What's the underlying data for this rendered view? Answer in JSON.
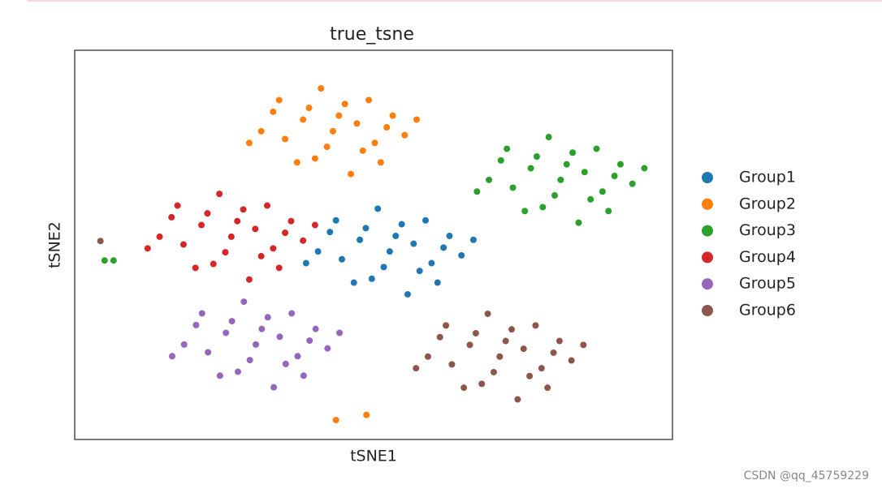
{
  "chart_data": {
    "type": "scatter",
    "title": "true_tsne",
    "x_label": "tSNE1",
    "y_label": "tSNE2",
    "xlim": [
      0,
      100
    ],
    "ylim": [
      0,
      100
    ],
    "xticks": [],
    "yticks": [],
    "grid": false,
    "legend": "right",
    "series": [
      {
        "name": "Group1",
        "color": "#1f77b4",
        "x": [
          52.7,
          56.7,
          47.7,
          59.7,
          44.7,
          54.7,
          49.7,
          62.7,
          42.7,
          58.7,
          46.7,
          64.7,
          40.7,
          55.7,
          50.7,
          60.7,
          43.7,
          66.7,
          38.7,
          53.7,
          51.7,
          57.7,
          48.7,
          61.7
        ],
        "y": [
          48.3,
          50.3,
          51.3,
          45.3,
          46.3,
          55.3,
          41.3,
          52.3,
          53.3,
          56.3,
          40.3,
          47.3,
          48.3,
          37.3,
          59.3,
          40.3,
          56.3,
          51.3,
          45.3,
          52.3,
          44.3,
          43.3,
          54.3,
          49.3
        ]
      },
      {
        "name": "Group2",
        "color": "#ff7f0e",
        "x": [
          43.2,
          47.2,
          38.2,
          50.2,
          35.2,
          45.2,
          40.2,
          53.2,
          33.2,
          49.2,
          37.2,
          55.2,
          31.2,
          46.2,
          41.2,
          51.2,
          34.2,
          57.2,
          29.2,
          44.2,
          42.2,
          48.2,
          39.2,
          52.2,
          43.7,
          48.8
        ],
        "y": [
          79.2,
          81.2,
          82.2,
          76.2,
          77.2,
          86.2,
          72.2,
          83.2,
          84.2,
          87.2,
          71.2,
          78.2,
          79.2,
          68.2,
          90.2,
          71.2,
          87.2,
          82.2,
          76.2,
          83.2,
          75.2,
          74.2,
          85.2,
          80.2,
          5,
          6.3
        ]
      },
      {
        "name": "Group3",
        "color": "#2ca02c",
        "x": [
          81.3,
          85.3,
          76.3,
          88.3,
          73.3,
          83.3,
          78.3,
          91.3,
          71.3,
          87.3,
          75.3,
          93.3,
          69.3,
          84.3,
          79.3,
          89.3,
          72.3,
          95.3,
          67.3,
          82.3,
          80.3,
          86.3,
          77.3,
          90.3,
          5,
          6.5
        ],
        "y": [
          66.7,
          68.7,
          69.7,
          63.7,
          64.7,
          73.7,
          59.7,
          70.7,
          71.7,
          74.7,
          58.7,
          65.7,
          66.7,
          55.7,
          77.7,
          58.7,
          74.7,
          69.7,
          63.7,
          70.7,
          62.7,
          61.7,
          72.7,
          67.7,
          46,
          46
        ]
      },
      {
        "name": "Group4",
        "color": "#d62728",
        "x": [
          26.2,
          30.2,
          21.2,
          33.2,
          18.2,
          28.2,
          23.2,
          36.2,
          16.2,
          32.2,
          20.2,
          38.2,
          14.2,
          29.2,
          24.2,
          34.2,
          17.2,
          40.2,
          12.2,
          27.2,
          25.2,
          31.2,
          22.2,
          35.2
        ],
        "y": [
          52.1,
          54.1,
          55.1,
          49.1,
          50.1,
          59.1,
          45.1,
          56.1,
          57.1,
          60.1,
          44.1,
          51.1,
          52.1,
          41.1,
          63.1,
          44.1,
          60.1,
          55.1,
          49.1,
          56.1,
          48.1,
          47.1,
          58.1,
          53.1
        ]
      },
      {
        "name": "Group5",
        "color": "#9467bd",
        "x": [
          30.3,
          34.3,
          25.3,
          37.3,
          22.3,
          32.3,
          27.3,
          40.3,
          20.3,
          36.3,
          24.3,
          42.3,
          18.3,
          33.3,
          28.3,
          38.3,
          21.3,
          44.3,
          16.3,
          31.3,
          29.3,
          35.3,
          26.3,
          39.3
        ],
        "y": [
          24.4,
          26.4,
          27.4,
          21.4,
          22.4,
          31.4,
          17.4,
          28.4,
          29.4,
          32.4,
          16.4,
          23.4,
          24.4,
          13.4,
          35.4,
          16.4,
          32.4,
          27.4,
          21.4,
          28.4,
          20.4,
          19.4,
          30.4,
          25.4
        ]
      },
      {
        "name": "Group6",
        "color": "#8c564b",
        "x": [
          71.1,
          75.1,
          66.1,
          78.1,
          63.1,
          73.1,
          68.1,
          81.1,
          61.1,
          77.1,
          65.1,
          83.1,
          59.1,
          74.1,
          69.1,
          79.1,
          62.1,
          85.1,
          57.1,
          72.1,
          70.1,
          76.1,
          67.1,
          80.1,
          4.3
        ],
        "y": [
          21.3,
          23.3,
          24.3,
          18.3,
          19.3,
          28.3,
          14.3,
          25.3,
          26.3,
          29.3,
          13.3,
          20.3,
          21.3,
          10.3,
          32.3,
          13.3,
          29.3,
          24.3,
          18.3,
          25.3,
          17.3,
          16.3,
          27.3,
          22.3,
          51
        ]
      }
    ]
  },
  "watermark": "CSDN @qq_45759229"
}
